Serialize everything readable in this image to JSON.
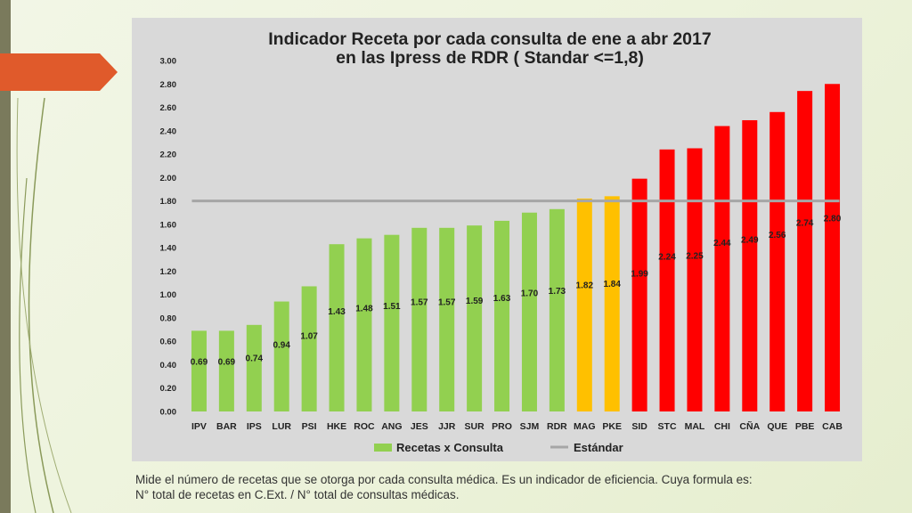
{
  "caption": {
    "line1": "Mide el número de recetas que se otorga por cada consulta médica. Es un indicador de eficiencia. Cuya formula es:",
    "line2": "N° total de recetas en C.Ext. / N° total de consultas médicas."
  },
  "chart_data": {
    "type": "bar",
    "title": "Indicador Receta por cada consulta de ene a abr 2017",
    "subtitle": "en las Ipress de RDR ( Standar <=1,8)",
    "xlabel": "",
    "ylabel": "",
    "ylim": [
      0,
      3.0
    ],
    "y_ticks": [
      "0.00",
      "0.20",
      "0.40",
      "0.60",
      "0.80",
      "1.00",
      "1.20",
      "1.40",
      "1.60",
      "1.80",
      "2.00",
      "2.20",
      "2.40",
      "2.60",
      "2.80",
      "3.00"
    ],
    "categories": [
      "IPV",
      "BAR",
      "IPS",
      "LUR",
      "PSI",
      "HKE",
      "ROC",
      "ANG",
      "JES",
      "JJR",
      "SUR",
      "PRO",
      "SJM",
      "RDR",
      "MAG",
      "PKE",
      "SID",
      "STC",
      "MAL",
      "CHI",
      "CÑA",
      "QUE",
      "PBE",
      "CAB"
    ],
    "values": [
      0.69,
      0.69,
      0.74,
      0.94,
      1.07,
      1.43,
      1.48,
      1.51,
      1.57,
      1.57,
      1.59,
      1.63,
      1.7,
      1.73,
      1.82,
      1.84,
      1.99,
      2.24,
      2.25,
      2.44,
      2.49,
      2.56,
      2.74,
      2.8
    ],
    "value_labels": [
      "0.69",
      "0.69",
      "0.74",
      "0.94",
      "1.07",
      "1.43",
      "1.48",
      "1.51",
      "1.57",
      "1.57",
      "1.59",
      "1.63",
      "1.70",
      "1.73",
      "1.82",
      "1.84",
      "1.99",
      "2.24",
      "2.25",
      "2.44",
      "2.49",
      "2.56",
      "2.74",
      "2.80"
    ],
    "bar_colors": [
      "#92d050",
      "#92d050",
      "#92d050",
      "#92d050",
      "#92d050",
      "#92d050",
      "#92d050",
      "#92d050",
      "#92d050",
      "#92d050",
      "#92d050",
      "#92d050",
      "#92d050",
      "#92d050",
      "#ffc000",
      "#ffc000",
      "#ff0000",
      "#ff0000",
      "#ff0000",
      "#ff0000",
      "#ff0000",
      "#ff0000",
      "#ff0000",
      "#ff0000"
    ],
    "standard": {
      "name": "Estándar",
      "value": 1.8,
      "color": "#a6a6a6"
    },
    "series_name": "Recetas x Consulta",
    "series_color": "#92d050",
    "legend_position": "bottom"
  }
}
